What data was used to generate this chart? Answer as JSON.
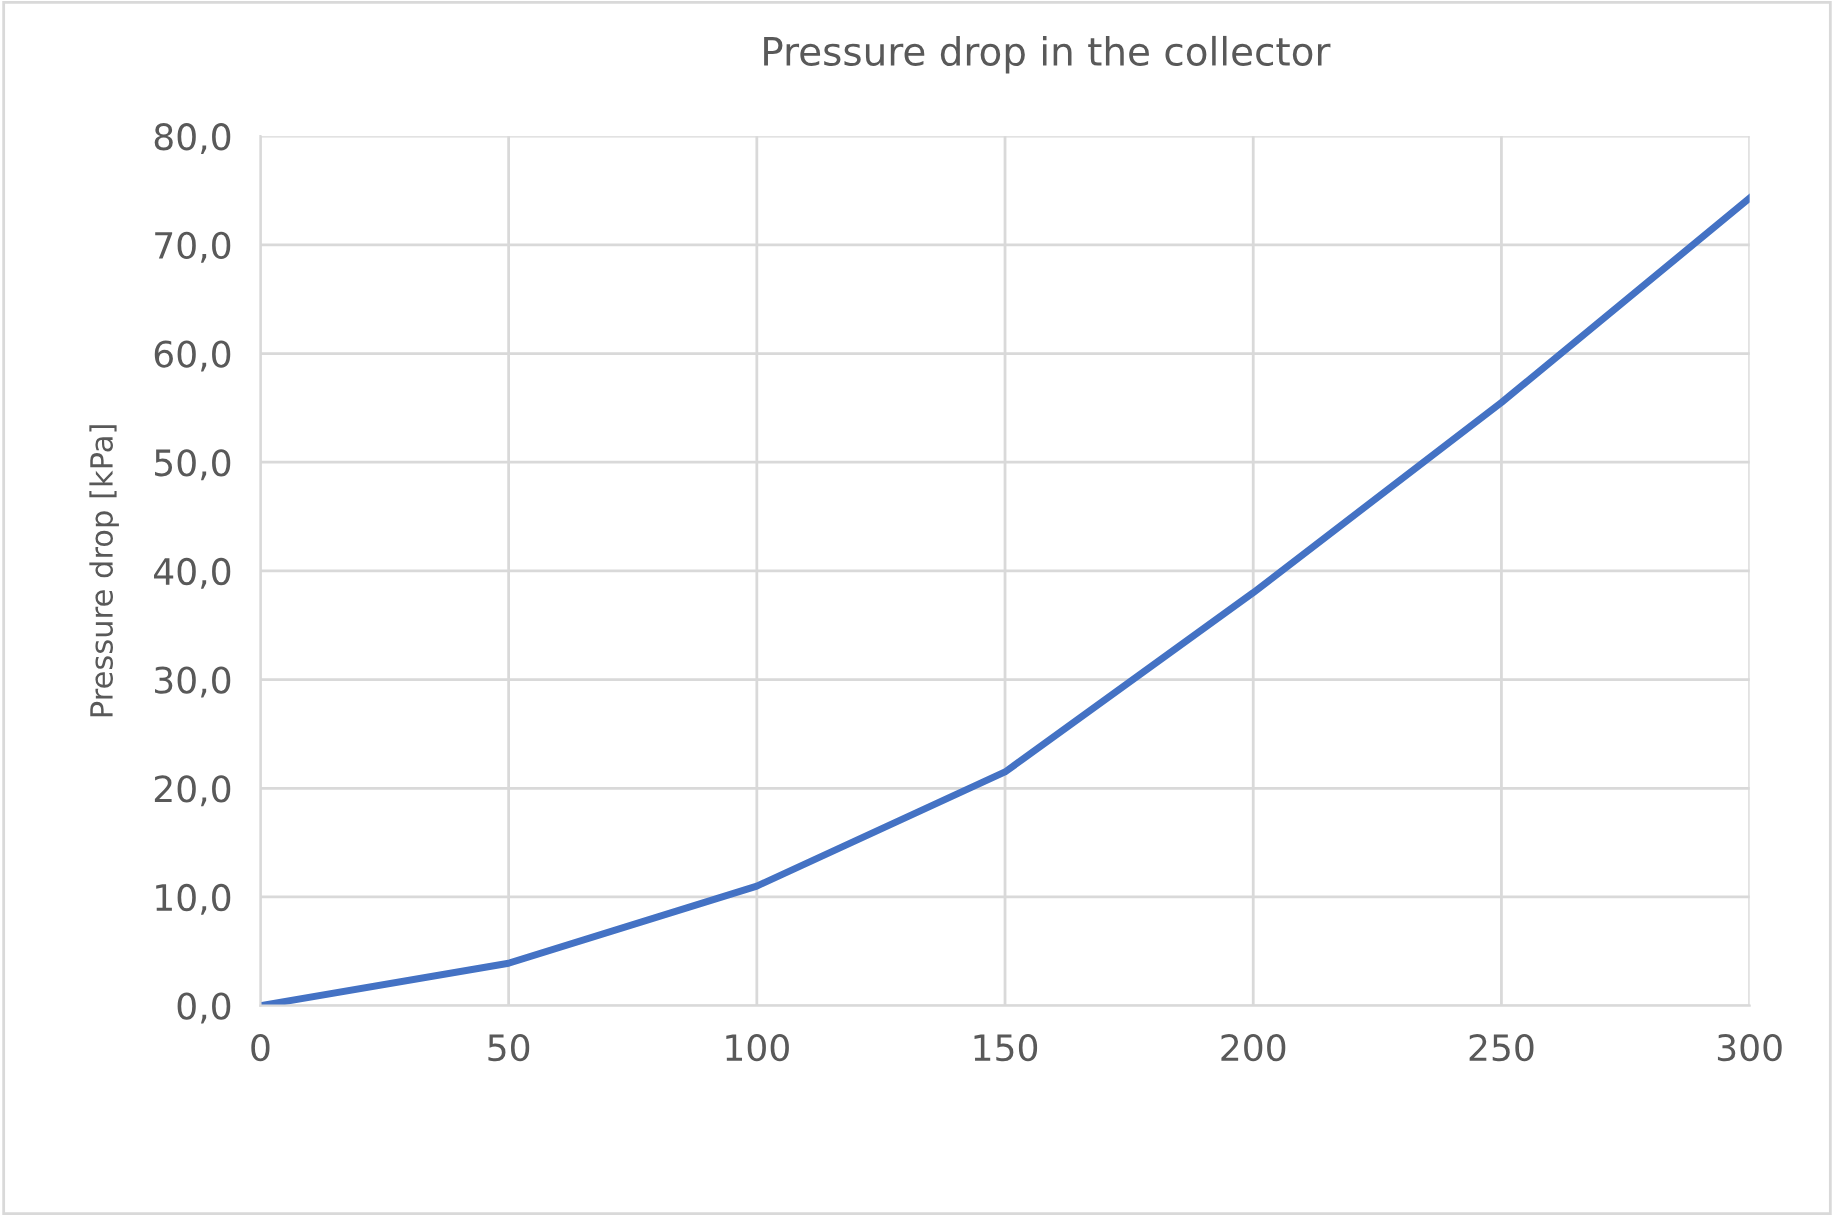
{
  "chart_data": {
    "type": "line",
    "title": "Pressure drop in the collector",
    "ylabel": "Pressure drop [kPa]",
    "x": [
      0,
      50,
      100,
      150,
      200,
      250,
      300
    ],
    "series": [
      {
        "color": "#4472c4",
        "values": [
          0,
          3.9,
          11.0,
          21.5,
          38.0,
          55.5,
          74.3
        ]
      }
    ],
    "xlim": [
      0,
      300
    ],
    "xticks": [
      0,
      50,
      100,
      150,
      200,
      250,
      300
    ],
    "ylim": [
      0,
      80
    ],
    "yticks": [
      {
        "value": 0,
        "label": "0,0"
      },
      {
        "value": 10,
        "label": "10,0"
      },
      {
        "value": 20,
        "label": "20,0"
      },
      {
        "value": 30,
        "label": "30,0"
      },
      {
        "value": 40,
        "label": "40,0"
      },
      {
        "value": 50,
        "label": "50,0"
      },
      {
        "value": 60,
        "label": "60,0"
      },
      {
        "value": 70,
        "label": "70,0"
      },
      {
        "value": 80,
        "label": "80,0"
      }
    ],
    "grid": true,
    "marker": "none",
    "line_style": "solid"
  }
}
